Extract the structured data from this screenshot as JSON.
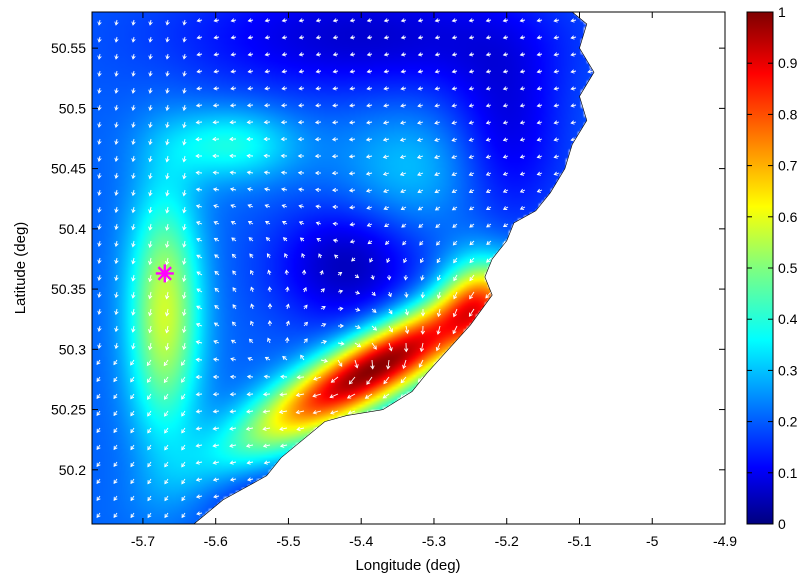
{
  "chart_data": {
    "type": "heatmap",
    "title": "",
    "xlabel": "Longitude (deg)",
    "ylabel": "Latitude (deg)",
    "xlim": [
      -5.77,
      -4.9
    ],
    "ylim": [
      50.155,
      50.58
    ],
    "xticks": [
      -5.7,
      -5.6,
      -5.5,
      -5.4,
      -5.3,
      -5.2,
      -5.1,
      -5.0,
      -4.9
    ],
    "xtick_labels": [
      "-5.7",
      "-5.6",
      "-5.5",
      "-5.4",
      "-5.3",
      "-5.2",
      "-5.1",
      "-5",
      "-4.9"
    ],
    "yticks": [
      50.2,
      50.25,
      50.3,
      50.35,
      50.4,
      50.45,
      50.5,
      50.55
    ],
    "ytick_labels": [
      "50.2",
      "50.25",
      "50.3",
      "50.35",
      "50.4",
      "50.45",
      "50.5",
      "50.55"
    ],
    "colormap": "jet",
    "colorbar": {
      "min": 0,
      "max": 1,
      "ticks": [
        0,
        0.1,
        0.2,
        0.3,
        0.4,
        0.5,
        0.6,
        0.7,
        0.8,
        0.9,
        1
      ],
      "tick_labels": [
        "0",
        "0.1",
        "0.2",
        "0.3",
        "0.4",
        "0.5",
        "0.6",
        "0.7",
        "0.8",
        "0.9",
        "1"
      ]
    },
    "features": [
      {
        "name": "high-intensity band",
        "center": [
          -5.38,
          50.28
        ],
        "extent_lon": [
          -5.6,
          -5.2
        ],
        "extent_lat": [
          50.23,
          50.37
        ],
        "value": 0.95
      },
      {
        "name": "western meridional band",
        "center": [
          -5.67,
          50.35
        ],
        "extent_lat": [
          50.25,
          50.45
        ],
        "value": 0.55
      },
      {
        "name": "northern arm",
        "center": [
          -5.6,
          50.47
        ],
        "value": 0.4
      },
      {
        "name": "central low",
        "center": [
          -5.42,
          50.37
        ],
        "value": 0.1
      }
    ],
    "vector_field": {
      "style": "white arrows",
      "description": "flow vectors overlaid on the field"
    },
    "marker": {
      "symbol": "asterisk",
      "color": "#ff00ff",
      "lon": -5.67,
      "lat": 50.363
    },
    "land_color": "#ffffff",
    "grid": false,
    "legend": "none"
  }
}
